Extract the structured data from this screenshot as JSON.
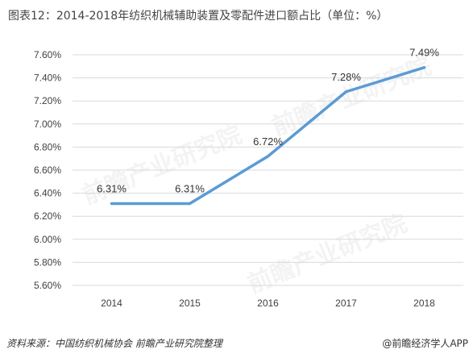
{
  "title": "图表12：2014-2018年纺织机械辅助装置及零配件进口额占比（单位：%）",
  "source": "资料来源：中国纺织机械协会 前瞻产业研究院整理",
  "brand": "@前瞻经济学人APP",
  "watermark": "前瞻产业研究院",
  "chart_data": {
    "type": "line",
    "title": "图表12：2014-2018年纺织机械辅助装置及零配件进口额占比（单位：%）",
    "categories": [
      "2014",
      "2015",
      "2016",
      "2017",
      "2018"
    ],
    "values": [
      6.31,
      6.31,
      6.72,
      7.28,
      7.49
    ],
    "data_labels": [
      "6.31%",
      "6.31%",
      "6.72%",
      "7.28%",
      "7.49%"
    ],
    "ylim": [
      5.6,
      7.6
    ],
    "yticks": [
      5.6,
      5.8,
      6.0,
      6.2,
      6.4,
      6.6,
      6.8,
      7.0,
      7.2,
      7.4,
      7.6
    ],
    "ytick_labels": [
      "5.60%",
      "5.80%",
      "6.00%",
      "6.20%",
      "6.40%",
      "6.60%",
      "6.80%",
      "7.00%",
      "7.20%",
      "7.40%",
      "7.60%"
    ],
    "xlabel": "",
    "ylabel": "",
    "grid": "horizontal",
    "line_color": "#5B9BD5",
    "gridline_color": "#D9D9D9"
  }
}
